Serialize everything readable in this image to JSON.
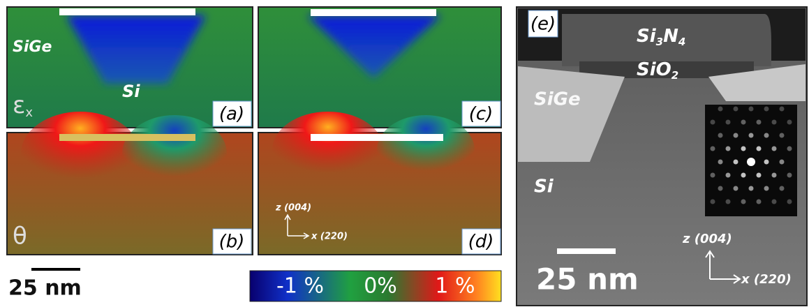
{
  "panels": [
    {
      "label": "(a)",
      "symbol": "ε",
      "symbol_sub": "x",
      "texts": [
        "SiGe",
        "Si"
      ]
    },
    {
      "label": "(b)",
      "symbol": "θ"
    },
    {
      "label": "(c)"
    },
    {
      "label": "(d)",
      "axis_z": "z (004)",
      "axis_x": "x (220)"
    },
    {
      "label": "(e)",
      "axis_z": "z (004)",
      "axis_x": "x (220)",
      "scale_bar": "25 nm",
      "layers": [
        {
          "parts": [
            {
              "text": "Si",
              "sub": "3"
            },
            {
              "text": "N",
              "sub": "4"
            }
          ]
        },
        {
          "parts": [
            {
              "text": "SiO",
              "sub": "2"
            }
          ]
        },
        {
          "parts": [
            {
              "text": "SiGe"
            }
          ]
        },
        {
          "parts": [
            {
              "text": "Si"
            }
          ]
        }
      ]
    }
  ],
  "scale_bar": "25 nm",
  "colorbar": {
    "labels": [
      "-1 %",
      "0%",
      "1 %"
    ]
  }
}
